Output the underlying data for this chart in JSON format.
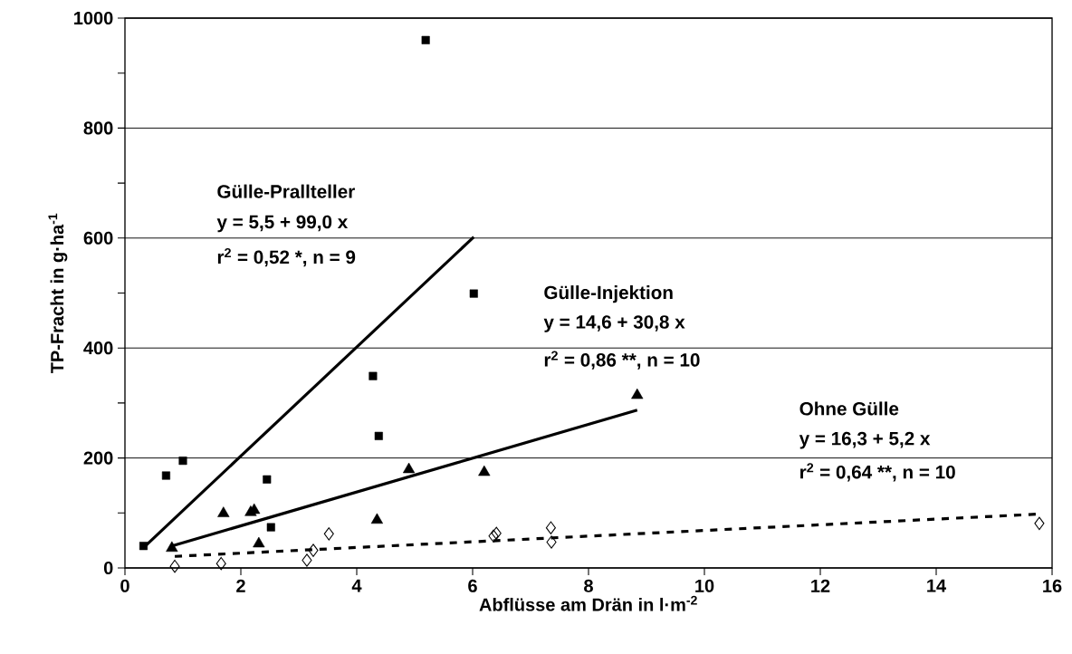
{
  "chart_data": {
    "type": "scatter",
    "xlabel": "Abflüsse am Drän in l·m$^{-2}$",
    "ylabel": "TP-Fracht in g·ha$^{-1}$",
    "xlim": [
      0,
      16
    ],
    "xticks": [
      0,
      2,
      4,
      6,
      8,
      10,
      12,
      14,
      16
    ],
    "ylim": [
      0,
      1000
    ],
    "yticks": [
      0,
      {
        "value": 100,
        "label": null
      },
      200,
      {
        "value": 300,
        "label": null
      },
      400,
      {
        "value": 500,
        "label": null
      },
      600,
      {
        "value": 700,
        "label": null
      },
      800,
      {
        "value": 900,
        "label": null
      },
      1000
    ],
    "grid": "y",
    "series": [
      {
        "color": "#000000",
        "marker": "square",
        "x": [
          0.32,
          0.71,
          1.0,
          2.45,
          2.52,
          4.28,
          4.38,
          5.19,
          6.02
        ],
        "values": [
          40,
          168,
          195,
          161,
          74,
          349,
          240,
          960,
          499
        ]
      },
      {
        "color": "#000000",
        "marker": "triangle",
        "x": [
          0.81,
          1.7,
          2.17,
          2.23,
          2.31,
          4.35,
          4.9,
          6.2,
          8.84
        ],
        "values": [
          36,
          99,
          101,
          105,
          44,
          87,
          179,
          174,
          314
        ]
      },
      {
        "color": "#000000",
        "marker": "diamond",
        "x": [
          0.86,
          1.66,
          3.14,
          3.25,
          3.52,
          6.36,
          6.41,
          7.35,
          7.36,
          15.78
        ],
        "values": [
          3,
          8,
          14,
          32,
          62,
          58,
          63,
          73,
          47,
          81
        ]
      },
      {
        "type": "line",
        "color": "#000000",
        "line_style": "solid",
        "x": [
          0.32,
          6.02
        ],
        "values": [
          37,
          602
        ]
      },
      {
        "type": "line",
        "color": "#000000",
        "line_style": "solid",
        "x": [
          0.81,
          8.84
        ],
        "values": [
          40,
          287
        ]
      },
      {
        "type": "line",
        "color": "#000000",
        "line_style": "dashed",
        "x": [
          0.86,
          15.78
        ],
        "values": [
          21,
          98
        ]
      }
    ],
    "annotations": [
      "Gülle-Prallteller",
      "y = 5,5 + 99,0 x",
      "r$^{2}$ = 0,52 *, n = 9",
      "Gülle-Injektion",
      "y = 14,6 + 30,8 x",
      "r$^{2}$ = 0,86 **, n = 10",
      "Ohne Gülle",
      "y = 16,3 + 5,2 x",
      "r$^{2}$ = 0,64 **, n = 10"
    ]
  }
}
